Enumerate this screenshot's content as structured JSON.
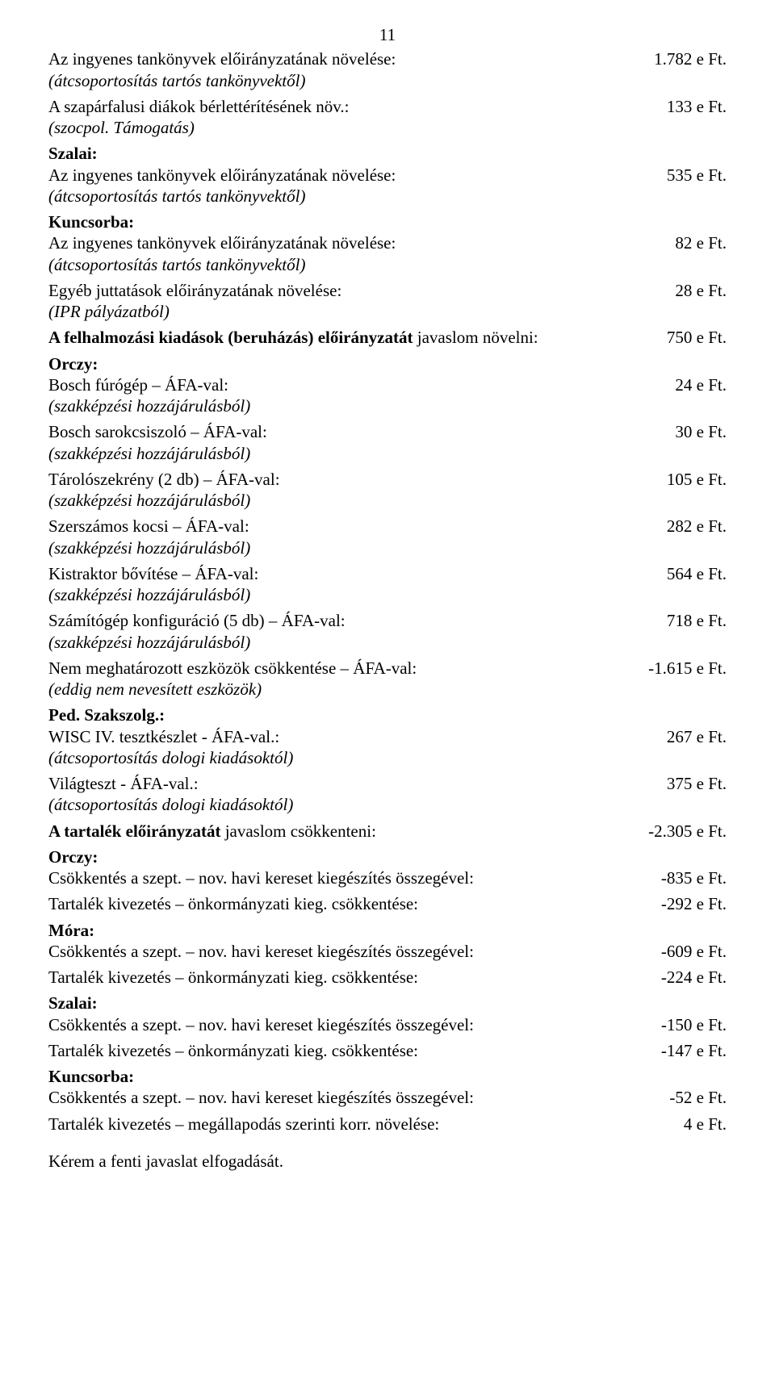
{
  "page_number": "11",
  "lines": [
    {
      "label": "Az ingyenes tankönyvek előirányzatának növelése:",
      "value": "1.782 e Ft.",
      "note": "(átcsoportosítás tartós tankönyvektől)"
    },
    {
      "label": "A szapárfalusi diákok bérlettérítésének növ.:",
      "value": "133 e Ft.",
      "note": "(szocpol. Támogatás)"
    },
    {
      "heading": "Szalai:"
    },
    {
      "label": "Az ingyenes tankönyvek előirányzatának növelése:",
      "value": "535 e Ft.",
      "note": "(átcsoportosítás tartós tankönyvektől)"
    },
    {
      "heading": "Kuncsorba:"
    },
    {
      "label": "Az ingyenes tankönyvek előirányzatának növelése:",
      "value": "82 e Ft.",
      "note": "(átcsoportosítás tartós tankönyvektől)"
    },
    {
      "label": "Egyéb juttatások előirányzatának növelése:",
      "value": "28 e Ft.",
      "note": "(IPR pályázatból)"
    },
    {
      "mixed_label_bold": "A felhalmozási kiadások (beruházás) előirányzatát",
      "mixed_label_rest": " javaslom növelni:",
      "value": "750 e Ft."
    },
    {
      "heading": "Orczy:"
    },
    {
      "label": "Bosch fúrógép – ÁFA-val:",
      "value": "24 e Ft.",
      "note": "(szakképzési hozzájárulásból)"
    },
    {
      "label": "Bosch sarokcsiszoló – ÁFA-val:",
      "value": "30 e Ft.",
      "note": "(szakképzési hozzájárulásból)"
    },
    {
      "label": "Tárolószekrény (2 db) – ÁFA-val:",
      "value": "105 e Ft.",
      "note": "(szakképzési hozzájárulásból)"
    },
    {
      "label": "Szerszámos kocsi – ÁFA-val:",
      "value": "282 e Ft.",
      "note": "(szakképzési hozzájárulásból)"
    },
    {
      "label": "Kistraktor bővítése – ÁFA-val:",
      "value": "564 e Ft.",
      "note": "(szakképzési hozzájárulásból)"
    },
    {
      "label": "Számítógép konfiguráció (5 db) – ÁFA-val:",
      "value": "718 e Ft.",
      "note": "(szakképzési hozzájárulásból)"
    },
    {
      "label": "Nem meghatározott eszközök csökkentése – ÁFA-val:",
      "value": "-1.615 e Ft.",
      "note": "(eddig nem nevesített eszközök)"
    },
    {
      "heading": "Ped. Szakszolg.:"
    },
    {
      "label": "WISC IV. tesztkészlet - ÁFA-val.:",
      "value": "267 e Ft.",
      "note": "(átcsoportosítás dologi kiadásoktól)"
    },
    {
      "label": "Világteszt - ÁFA-val.:",
      "value": "375 e Ft.",
      "note": "(átcsoportosítás dologi kiadásoktól)"
    },
    {
      "mixed_label_bold": "A tartalék előirányzatát",
      "mixed_label_rest": " javaslom csökkenteni:",
      "value": "-2.305 e Ft."
    },
    {
      "heading": "Orczy:"
    },
    {
      "label": "Csökkentés a szept. – nov. havi kereset kiegészítés összegével:",
      "value": "-835 e Ft."
    },
    {
      "label": "Tartalék kivezetés – önkormányzati kieg. csökkentése:",
      "value": "-292 e Ft."
    },
    {
      "heading": "Móra:"
    },
    {
      "label": "Csökkentés a szept. – nov. havi kereset kiegészítés összegével:",
      "value": "-609 e Ft."
    },
    {
      "label": "Tartalék kivezetés – önkormányzati kieg. csökkentése:",
      "value": "-224 e Ft."
    },
    {
      "heading": "Szalai:"
    },
    {
      "label": "Csökkentés a szept. – nov. havi kereset kiegészítés összegével:",
      "value": "-150 e Ft."
    },
    {
      "label": "Tartalék kivezetés – önkormányzati kieg. csökkentése:",
      "value": "-147 e Ft."
    },
    {
      "heading": "Kuncsorba:"
    },
    {
      "label": "Csökkentés a szept. – nov. havi kereset kiegészítés összegével:",
      "value": "-52 e Ft."
    },
    {
      "label": "Tartalék kivezetés – megállapodás szerinti korr. növelése:",
      "value": "4 e Ft."
    }
  ],
  "closing": "Kérem a fenti javaslat elfogadását."
}
